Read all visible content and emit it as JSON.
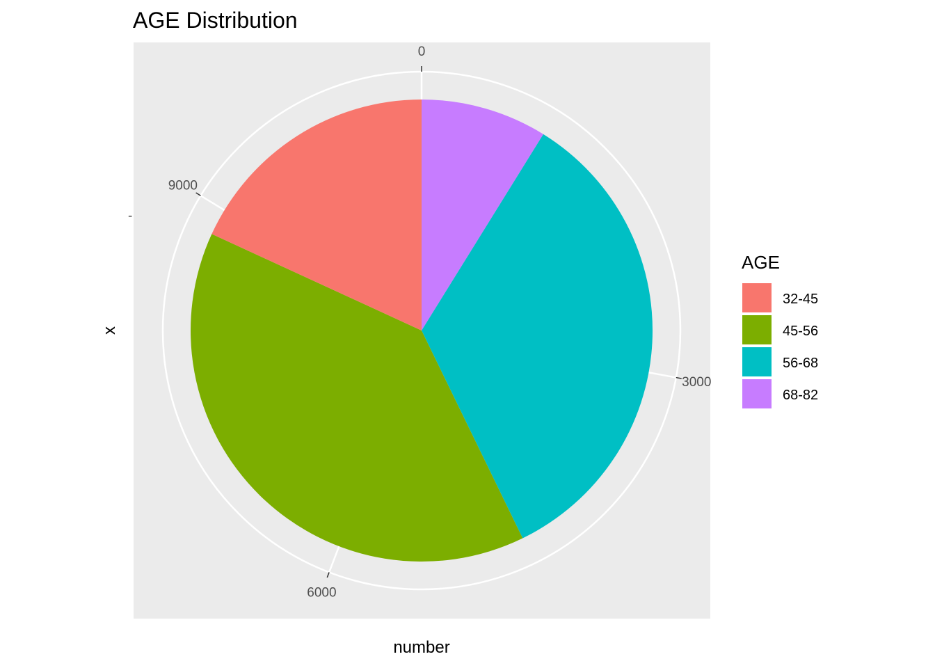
{
  "chart_data": {
    "type": "pie",
    "title": "AGE Distribution",
    "xlabel": "number",
    "ylabel": "x",
    "y_tick_label": "-",
    "categories": [
      "32-45",
      "45-56",
      "56-68",
      "68-82"
    ],
    "values": [
      1950,
      4200,
      3650,
      950
    ],
    "colors": [
      "#F8766D",
      "#7CAE00",
      "#00BFC4",
      "#C77CFF"
    ],
    "theta_ticks": [
      0,
      3000,
      6000,
      9000
    ],
    "theta_tick_labels": [
      "0",
      "3000",
      "6000",
      "9000"
    ],
    "theta_total": 10750,
    "stack_order": [
      "68-82",
      "56-68",
      "45-56",
      "32-45"
    ],
    "direction": "clockwise",
    "start": "top",
    "legend": {
      "title": "AGE",
      "position": "right"
    },
    "panel_background": "#EBEBEB",
    "grid_color": "#FFFFFF",
    "grid": true
  }
}
